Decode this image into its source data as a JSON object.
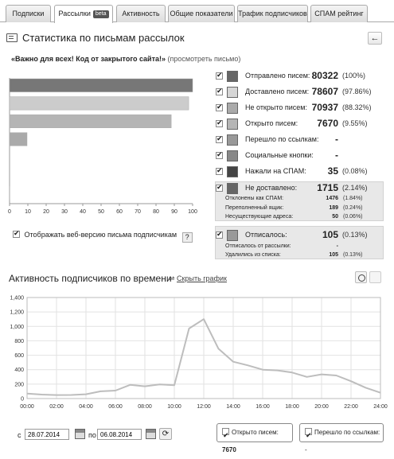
{
  "tabs": [
    {
      "label": "Подписки"
    },
    {
      "label": "Рассылки",
      "badge": "beta"
    },
    {
      "label": "Активность"
    },
    {
      "label": "Общие показатели"
    },
    {
      "label": "Трафик подписчиков"
    },
    {
      "label": "СПАМ рейтинг"
    }
  ],
  "page": {
    "title": "Статистика по письмам рассылок",
    "back_icon": "arrow-left-icon",
    "subject": "«Важно для всех! Код от закрытого сайта!»",
    "subject_link": "(просмотреть письмо)"
  },
  "bar_chart": {
    "type": "bar",
    "orientation": "horizontal",
    "xlim": [
      0,
      100
    ],
    "x_ticks": [
      "0",
      "10",
      "20",
      "30",
      "40",
      "50",
      "60",
      "70",
      "80",
      "90",
      "100"
    ],
    "bars": [
      {
        "value": 100,
        "color": "#777777"
      },
      {
        "value": 97.86,
        "color": "#cccccc"
      },
      {
        "value": 88.32,
        "color": "#b5b5b5"
      },
      {
        "value": 9.55,
        "color": "#aaaaaa"
      },
      {
        "value": 0,
        "color": "#999999"
      },
      {
        "value": 0,
        "color": "#888888"
      },
      {
        "value": 0.08,
        "color": "#333333"
      }
    ]
  },
  "web_version_checkbox": {
    "label": "Отображать веб-версию письма подписчикам",
    "help": "?"
  },
  "legend": [
    {
      "label": "Отправлено писем:",
      "value": "80322",
      "pct": "(100%)",
      "color": "#666666"
    },
    {
      "label": "Доставлено писем:",
      "value": "78607",
      "pct": "(97.86%)",
      "color": "#d6d6d6"
    },
    {
      "label": "Не открыто писем:",
      "value": "70937",
      "pct": "(88.32%)",
      "color": "#aaaaaa"
    },
    {
      "label": "Открыто писем:",
      "value": "7670",
      "pct": "(9.55%)",
      "color": "#b5b5b5"
    },
    {
      "label": "Перешло по ссылкам:",
      "value": "-",
      "pct": "",
      "color": "#999999"
    },
    {
      "label": "Социальные кнопки:",
      "value": "-",
      "pct": "",
      "color": "#888888"
    },
    {
      "label": "Нажали на СПАМ:",
      "value": "35",
      "pct": "(0.08%)",
      "color": "#444444"
    }
  ],
  "not_delivered": {
    "label": "Не доставлено:",
    "value": "1715",
    "pct": "(2.14%)",
    "color": "#666666",
    "rows": [
      {
        "label": "Отклонены как СПАМ:",
        "value": "1476",
        "pct": "(1.84%)"
      },
      {
        "label": "Переполненный ящик:",
        "value": "189",
        "pct": "(0.24%)"
      },
      {
        "label": "Несуществующие адреса:",
        "value": "50",
        "pct": "(0.06%)"
      }
    ]
  },
  "unsubscribed": {
    "label": "Отписалось:",
    "value": "105",
    "pct": "(0.13%)",
    "color": "#999999",
    "rows": [
      {
        "label": "Отписалось от рассылки:",
        "value": "-",
        "pct": ""
      },
      {
        "label": "Удалились из списка:",
        "value": "105",
        "pct": "(0.13%)"
      }
    ]
  },
  "activity": {
    "title": "Активность подписчиков по времени",
    "hide_link": "Скрыть график",
    "clock_icon": "clock-icon",
    "calendar_icon": "calendar-icon"
  },
  "chart_data": {
    "type": "line",
    "title": "",
    "ylim": [
      0,
      1400
    ],
    "y_ticks": [
      "0",
      "200",
      "400",
      "600",
      "800",
      "1,000",
      "1,200",
      "1,400"
    ],
    "x_ticks": [
      "00:00",
      "02:00",
      "04:00",
      "06:00",
      "08:00",
      "10:00",
      "12:00",
      "14:00",
      "16:00",
      "18:00",
      "20:00",
      "22:00",
      "24:00"
    ],
    "x": [
      0,
      1,
      2,
      3,
      4,
      5,
      6,
      7,
      8,
      9,
      10,
      11,
      12,
      13,
      14,
      15,
      16,
      17,
      18,
      19,
      20,
      21,
      22,
      23,
      24
    ],
    "series": [
      {
        "values": [
          70,
          55,
          48,
          50,
          60,
          100,
          110,
          190,
          170,
          195,
          185,
          970,
          1100,
          690,
          510,
          460,
          400,
          390,
          360,
          300,
          335,
          320,
          240,
          150,
          80
        ]
      }
    ]
  },
  "footer": {
    "from_label": "с",
    "from_date": "28.07.2014",
    "to_label": "по",
    "to_date": "06.08.2014",
    "refresh_icon": "refresh-icon",
    "series_toggles": [
      {
        "label": "Открыто писем:",
        "value": "7670"
      },
      {
        "label": "Перешло по ссылкам:",
        "value": "-"
      }
    ]
  }
}
